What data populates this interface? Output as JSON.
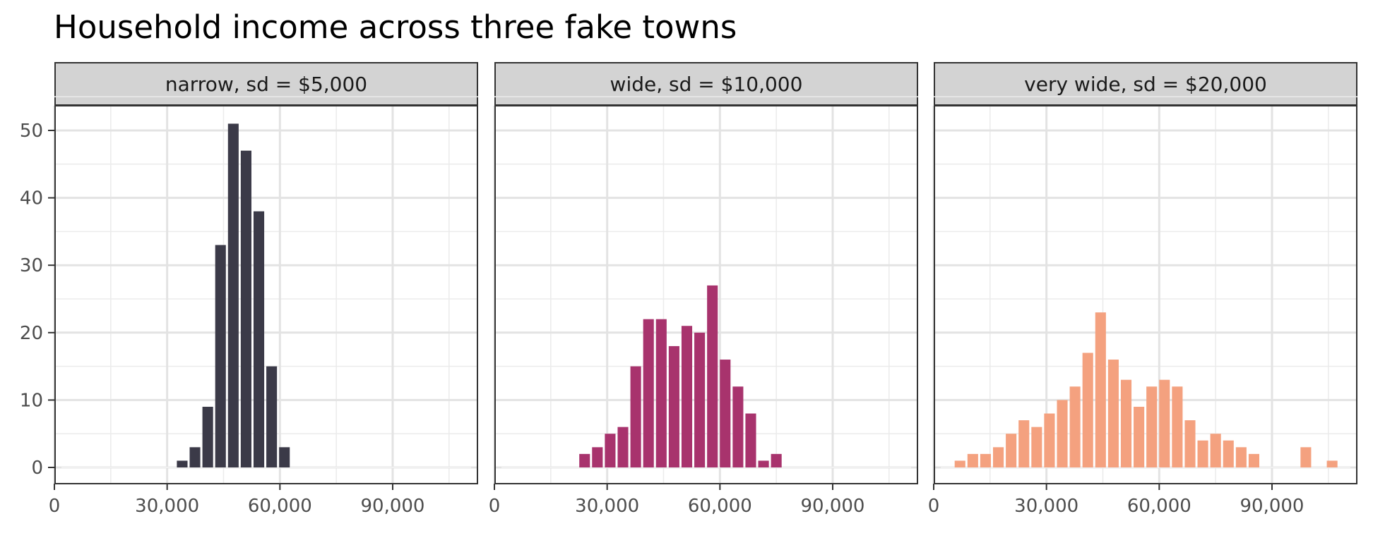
{
  "title": "Household income across three fake towns",
  "chart_data": {
    "type": "bar",
    "title": "Household income across three fake towns",
    "xlabel": "",
    "ylabel": "",
    "xlim": [
      0,
      112000
    ],
    "ylim": [
      0,
      55
    ],
    "grid": true,
    "x_ticks": [
      0,
      30000,
      60000,
      90000
    ],
    "x_tick_labels": [
      "0",
      "30,000",
      "60,000",
      "90,000"
    ],
    "y_ticks": [
      0,
      10,
      20,
      30,
      40,
      50
    ],
    "y_tick_labels": [
      "0",
      "10",
      "20",
      "30",
      "40",
      "50"
    ],
    "bin_width": 3400,
    "panels": [
      {
        "label": "narrow, sd = $5,000",
        "color": "#3b3a48",
        "x": [
          34000,
          37400,
          40800,
          44200,
          47600,
          51000,
          54400,
          57800,
          61200
        ],
        "values": [
          1,
          3,
          9,
          33,
          51,
          47,
          38,
          15,
          3
        ]
      },
      {
        "label": "wide, sd = $10,000",
        "color": "#a8336d",
        "x": [
          24000,
          27400,
          30800,
          34200,
          37600,
          41000,
          44400,
          47800,
          51200,
          54600,
          58000,
          61400,
          64800,
          68200,
          71600,
          75000
        ],
        "values": [
          2,
          3,
          5,
          6,
          15,
          22,
          22,
          18,
          21,
          20,
          27,
          16,
          12,
          8,
          1,
          2
        ]
      },
      {
        "label": "very wide, sd = $20,000",
        "color": "#f4a17f",
        "x": [
          7000,
          10400,
          13800,
          17200,
          20600,
          24000,
          27400,
          30800,
          34200,
          37600,
          41000,
          44400,
          47800,
          51200,
          54600,
          58000,
          61400,
          64800,
          68200,
          71600,
          75000,
          78400,
          81800,
          85200,
          99000,
          106000
        ],
        "values": [
          1,
          2,
          2,
          3,
          5,
          7,
          6,
          8,
          10,
          12,
          17,
          23,
          16,
          13,
          9,
          12,
          13,
          12,
          7,
          4,
          5,
          4,
          3,
          2,
          3,
          1
        ]
      }
    ]
  }
}
